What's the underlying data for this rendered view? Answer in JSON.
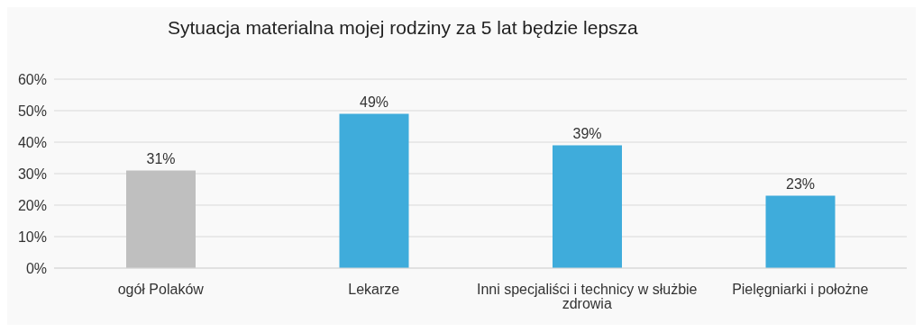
{
  "chart_data": {
    "type": "bar",
    "title": "Sytuacja materialna mojej rodziny za 5 lat będzie lepsza",
    "categories": [
      "ogół Polaków",
      "Lekarze",
      "Inni specjaliści i technicy w służbie zdrowia",
      "Pielęgniarki i położne"
    ],
    "values": [
      31,
      49,
      39,
      23
    ],
    "colors": [
      "#bfbfbf",
      "#3facdb",
      "#3facdb",
      "#3facdb"
    ],
    "value_labels": [
      "31%",
      "49%",
      "39%",
      "23%"
    ],
    "ylim": [
      0,
      60
    ],
    "yticks": [
      {
        "value": 0,
        "label": "0%"
      },
      {
        "value": 10,
        "label": "10%"
      },
      {
        "value": 20,
        "label": "20%"
      },
      {
        "value": 30,
        "label": "30%"
      },
      {
        "value": 40,
        "label": "40%"
      },
      {
        "value": 50,
        "label": "50%"
      },
      {
        "value": 60,
        "label": "60%"
      }
    ],
    "grid": "y"
  }
}
